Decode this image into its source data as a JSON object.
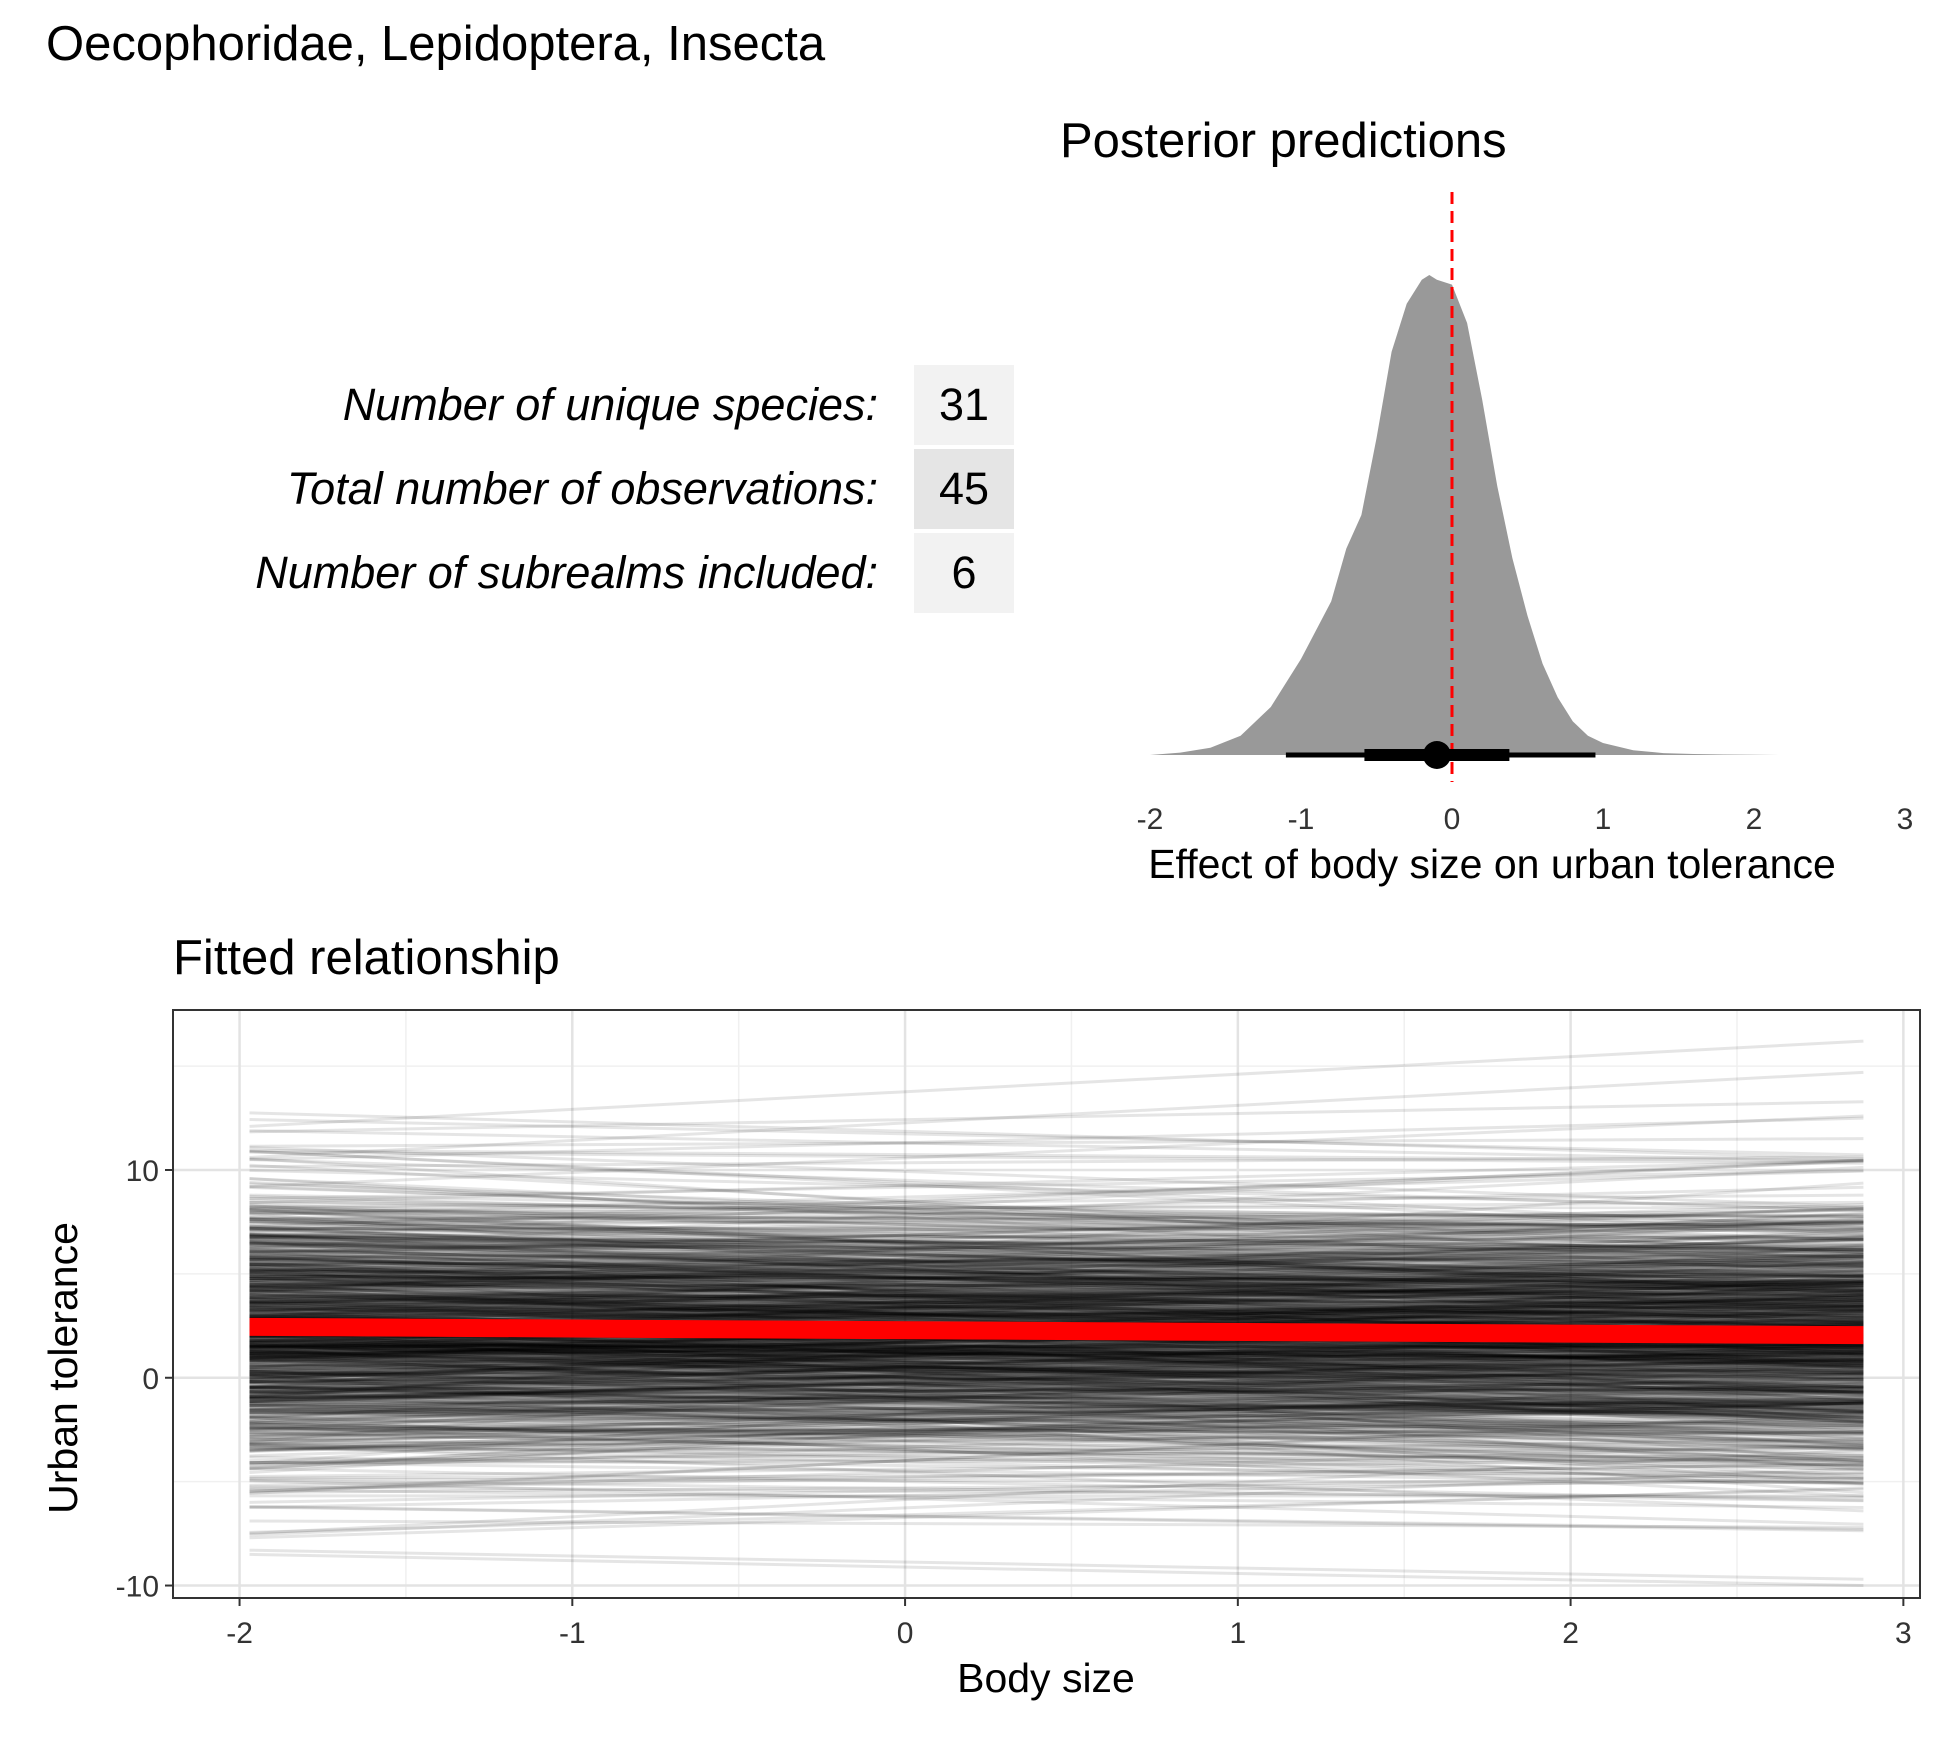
{
  "figure": {
    "title": "Oecophoridae, Lepidoptera, Insecta"
  },
  "stats": [
    {
      "label": "Number of unique species:",
      "value": "31"
    },
    {
      "label": "Total number of observations:",
      "value": "45"
    },
    {
      "label": "Number of subrealms included:",
      "value": "6"
    }
  ],
  "colors": {
    "density_fill": "#999999",
    "reference_line": "#ff0000",
    "fit_line": "#ff0000",
    "draws": "#000000",
    "stat_cell_light": "#f2f2f2",
    "stat_cell_dark": "#e5e5e5"
  },
  "chart_data": [
    {
      "type": "area",
      "title": "Posterior predictions",
      "xlabel": "Effect of body size on urban tolerance",
      "ylabel": "",
      "xlim": [
        -2,
        3
      ],
      "xticks": [
        "-2",
        "-1",
        "0",
        "1",
        "2",
        "3"
      ],
      "reference_line_x": 0,
      "density": {
        "x": [
          -2.0,
          -1.8,
          -1.6,
          -1.4,
          -1.2,
          -1.0,
          -0.8,
          -0.7,
          -0.6,
          -0.5,
          -0.4,
          -0.3,
          -0.2,
          -0.15,
          -0.1,
          0.0,
          0.1,
          0.2,
          0.3,
          0.4,
          0.5,
          0.6,
          0.7,
          0.8,
          0.9,
          1.0,
          1.2,
          1.4,
          1.6,
          1.8,
          2.0,
          2.2,
          2.5,
          2.8
        ],
        "y": [
          0.0,
          0.005,
          0.015,
          0.04,
          0.1,
          0.2,
          0.32,
          0.43,
          0.5,
          0.66,
          0.84,
          0.94,
          0.99,
          1.0,
          0.99,
          0.98,
          0.9,
          0.74,
          0.56,
          0.41,
          0.29,
          0.19,
          0.12,
          0.07,
          0.04,
          0.025,
          0.01,
          0.004,
          0.002,
          0.001,
          0.0005,
          0.0,
          0.0,
          0.0
        ]
      },
      "point_estimate": -0.1,
      "interval_inner": [
        -0.58,
        0.38
      ],
      "interval_outer": [
        -1.1,
        0.95
      ],
      "grid": false
    },
    {
      "type": "line",
      "title": "Fitted relationship",
      "xlabel": "Body size",
      "ylabel": "Urban tolerance",
      "xlim": [
        -2.2,
        3.05
      ],
      "ylim": [
        -10.6,
        17.7
      ],
      "xticks": [
        "-2",
        "-1",
        "0",
        "1",
        "2",
        "3"
      ],
      "yticks": [
        "-10",
        "0",
        "10"
      ],
      "x_range": [
        -1.97,
        2.88
      ],
      "posterior_draws": 1000,
      "grid": true,
      "series": [
        {
          "x": [
            -1.97,
            2.88
          ],
          "y": [
            2.45,
            2.05
          ]
        }
      ],
      "sample_draws": [
        {
          "x": [
            -1.97,
            2.88
          ],
          "y": [
            12.1,
            16.2
          ]
        },
        {
          "x": [
            -1.97,
            2.88
          ],
          "y": [
            10.6,
            14.7
          ]
        },
        {
          "x": [
            -1.97,
            2.88
          ],
          "y": [
            9.2,
            12.6
          ]
        },
        {
          "x": [
            -1.97,
            2.88
          ],
          "y": [
            -7.7,
            -5.3
          ]
        },
        {
          "x": [
            -1.97,
            2.88
          ],
          "y": [
            -8.3,
            -9.7
          ]
        },
        {
          "x": [
            -1.97,
            2.88
          ],
          "y": [
            -8.5,
            -10.0
          ]
        },
        {
          "x": [
            -1.97,
            2.88
          ],
          "y": [
            -6.2,
            -7.3
          ]
        }
      ]
    }
  ]
}
